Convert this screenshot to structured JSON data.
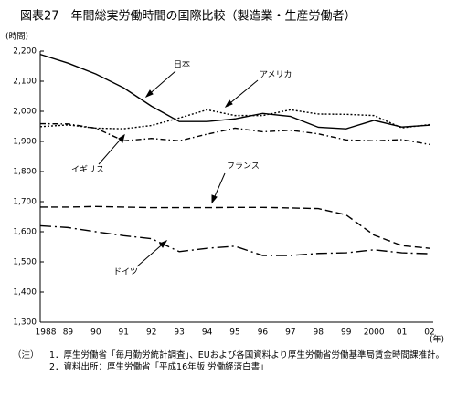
{
  "chart_data": {
    "type": "line",
    "title": "図表27　年間総実労働時間の国際比較（製造業・生産労働者）",
    "y_label": "(時間)",
    "x_label": "(年)",
    "categories": [
      "1988",
      "89",
      "90",
      "91",
      "92",
      "93",
      "94",
      "95",
      "96",
      "97",
      "98",
      "99",
      "2000",
      "01",
      "02"
    ],
    "series": [
      {
        "name": "日本",
        "color": "#000000",
        "line_style": "solid",
        "values": [
          2189,
          2160,
          2124,
          2078,
          2017,
          1966,
          1966,
          1975,
          1993,
          1983,
          1947,
          1942,
          1970,
          1948,
          1954
        ]
      },
      {
        "name": "アメリカ",
        "color": "#000000",
        "line_style": "dot",
        "values": [
          1949,
          1955,
          1944,
          1942,
          1953,
          1978,
          2005,
          1986,
          1986,
          2005,
          1991,
          1990,
          1986,
          1945,
          1956
        ]
      },
      {
        "name": "イギリス",
        "color": "#000000",
        "line_style": "dash-dot",
        "values": [
          1959,
          1958,
          1944,
          1902,
          1910,
          1902,
          1924,
          1944,
          1932,
          1937,
          1925,
          1905,
          1902,
          1906,
          1890
        ]
      },
      {
        "name": "フランス",
        "color": "#000000",
        "line_style": "dash",
        "values": [
          1682,
          1682,
          1684,
          1682,
          1680,
          1680,
          1680,
          1681,
          1681,
          1679,
          1677,
          1656,
          1589,
          1554,
          1545
        ]
      },
      {
        "name": "ドイツ",
        "color": "#000000",
        "line_style": "long-dash-dot",
        "values": [
          1620,
          1614,
          1600,
          1587,
          1577,
          1534,
          1545,
          1552,
          1521,
          1521,
          1528,
          1530,
          1540,
          1530,
          1527
        ]
      }
    ],
    "ylim": [
      1300,
      2200
    ],
    "yticks": [
      {
        "value": 1300,
        "label": "1,300"
      },
      {
        "value": 1400,
        "label": "1,400"
      },
      {
        "value": 1500,
        "label": "1,500"
      },
      {
        "value": 1600,
        "label": "1,600"
      },
      {
        "value": 1700,
        "label": "1,700"
      },
      {
        "value": 1800,
        "label": "1,800"
      },
      {
        "value": 1900,
        "label": "1,900"
      },
      {
        "value": 2000,
        "label": "2,000"
      },
      {
        "value": 2100,
        "label": "2,100"
      },
      {
        "value": 2200,
        "label": "2,200"
      }
    ],
    "grid": false,
    "notes_head": "（注）",
    "notes": [
      "1．厚生労働省「毎月勤労統計調査」、EUおよび各国資料より厚生労働省労働基準局賃金時間課推計。",
      "2．資料出所：厚生労働省「平成16年版 労働経済白書」"
    ]
  }
}
